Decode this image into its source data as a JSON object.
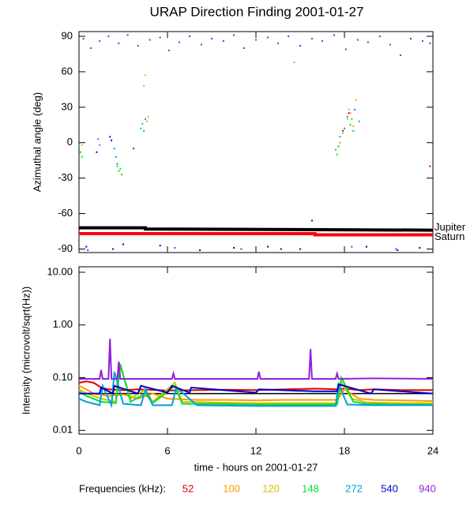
{
  "chart_data": [
    {
      "type": "scatter",
      "title": "URAP Direction Finding  2001-01-27",
      "ylabel": "Azimuthal angle (deg)",
      "xlim": [
        0,
        24
      ],
      "ylim": [
        -93,
        94
      ],
      "yticks": [
        -90,
        -60,
        -30,
        0,
        30,
        60,
        90
      ],
      "series": [
        {
          "name": "52",
          "color": "#e00000",
          "x": [
            3.7,
            17.9,
            18.3,
            23.8
          ],
          "values": [
            -5,
            10,
            25,
            -20
          ]
        },
        {
          "name": "100",
          "color": "#ff9900",
          "x": [
            4.6,
            4.7,
            14.6,
            17.7,
            17.9,
            18.2,
            18.4,
            18.6,
            0.1
          ],
          "values": [
            18,
            22,
            68,
            0,
            8,
            20,
            25,
            14,
            -8
          ]
        },
        {
          "name": "120",
          "color": "#d4c000",
          "x": [
            4.4,
            4.5,
            17.6,
            18.0,
            18.3,
            18.8,
            0.2
          ],
          "values": [
            48,
            57,
            -3,
            12,
            28,
            36,
            -2
          ]
        },
        {
          "name": "148",
          "color": "#00e030",
          "x": [
            0.0,
            0.1,
            0.2,
            2.6,
            2.7,
            2.8,
            2.9,
            4.2,
            4.3,
            17.4,
            17.5,
            17.6,
            18.4,
            18.5,
            18.6
          ],
          "values": [
            -3,
            -8,
            -12,
            -20,
            -24,
            -22,
            -27,
            12,
            16,
            -6,
            -10,
            -3,
            15,
            20,
            10
          ]
        },
        {
          "name": "272",
          "color": "#00a0e0",
          "x": [
            1.3,
            1.4,
            2.4,
            2.5,
            2.6,
            4.4,
            4.5,
            17.7,
            18.0,
            18.2,
            18.7,
            19.0
          ],
          "values": [
            3,
            -2,
            -5,
            -12,
            -18,
            10,
            20,
            5,
            12,
            22,
            28,
            18
          ]
        },
        {
          "name": "540",
          "color": "#0000d0",
          "x": [
            1.2,
            2.1,
            2.2,
            0.5,
            2.3,
            5.5,
            8.2,
            10.5,
            12.8,
            15.0,
            15.8,
            19.5,
            21.6,
            23.1,
            3.0,
            13.7
          ],
          "values": [
            -8,
            5,
            2,
            -88,
            -90,
            -87,
            -91,
            -89,
            -88,
            -90,
            -66,
            -88,
            -91,
            -89,
            -86,
            -90
          ]
        },
        {
          "name": "940",
          "color": "#9020e0",
          "x": [
            0.3,
            0.8,
            1.4,
            2.0,
            2.7,
            3.3,
            4.0,
            4.8,
            5.5,
            6.1,
            6.8,
            7.5,
            8.3,
            9.0,
            9.8,
            10.5,
            11.2,
            12.0,
            12.8,
            13.5,
            14.2,
            15.0,
            15.8,
            16.5,
            17.3,
            18.1,
            18.9,
            19.6,
            20.4,
            21.1,
            21.8,
            22.5,
            23.3,
            23.8,
            0.6,
            6.5,
            11.0,
            18.5,
            21.5
          ],
          "values": [
            88,
            80,
            86,
            90,
            84,
            91,
            82,
            87,
            89,
            78,
            85,
            90,
            83,
            88,
            86,
            91,
            80,
            87,
            89,
            84,
            90,
            82,
            88,
            86,
            91,
            79,
            87,
            85,
            90,
            83,
            74,
            88,
            86,
            84,
            -91,
            -89,
            -90,
            -88,
            -90
          ]
        }
      ],
      "reference_lines": [
        {
          "name": "Jupiter",
          "color": "#000000",
          "x": [
            0,
            4.5,
            4.5,
            24
          ],
          "values": [
            -72,
            -72,
            -73,
            -74
          ]
        },
        {
          "name": "Saturn",
          "color": "#ff0000",
          "x": [
            0,
            16,
            16,
            24
          ],
          "values": [
            -77,
            -77,
            -78,
            -78
          ]
        }
      ]
    },
    {
      "type": "line",
      "ylabel": "Intensity (microvolt/sqrt(Hz))",
      "xlabel": "time - hours on 2001-01-27",
      "xlim": [
        0,
        24
      ],
      "xticks": [
        0,
        6,
        12,
        18,
        24
      ],
      "log_scale": true,
      "ylim": [
        0.0085,
        12.7
      ],
      "yticks": [
        {
          "value": 0.01,
          "label": "0.01"
        },
        {
          "value": 0.1,
          "label": "0.10"
        },
        {
          "value": 1,
          "label": "1.00"
        },
        {
          "value": 10,
          "label": "10.00"
        }
      ],
      "legend_title": "Frequencies (kHz):",
      "series": [
        {
          "name": "52",
          "color": "#e00000",
          "x": [
            0,
            0.5,
            1,
            1.5,
            2,
            3,
            4,
            6,
            8,
            10,
            12,
            14,
            16,
            17.5,
            18,
            19,
            20,
            22,
            24
          ],
          "values": [
            0.08,
            0.085,
            0.08,
            0.065,
            0.06,
            0.058,
            0.06,
            0.057,
            0.058,
            0.059,
            0.058,
            0.06,
            0.062,
            0.06,
            0.062,
            0.058,
            0.06,
            0.058,
            0.058
          ]
        },
        {
          "name": "100",
          "color": "#ff9900",
          "x": [
            0,
            0.5,
            1,
            2,
            3,
            4,
            5,
            6,
            8,
            10,
            12,
            14,
            16,
            17.5,
            18,
            19,
            20,
            22,
            24
          ],
          "values": [
            0.07,
            0.06,
            0.05,
            0.045,
            0.048,
            0.04,
            0.05,
            0.04,
            0.038,
            0.038,
            0.037,
            0.038,
            0.038,
            0.038,
            0.06,
            0.04,
            0.038,
            0.037,
            0.036
          ]
        },
        {
          "name": "120",
          "color": "#d4c000",
          "x": [
            0,
            0.5,
            1.5,
            2.5,
            2.7,
            3.5,
            4.5,
            5,
            6.5,
            7,
            9,
            12,
            15,
            17.5,
            17.8,
            18.5,
            19.5,
            22,
            24
          ],
          "values": [
            0.06,
            0.05,
            0.04,
            0.035,
            0.2,
            0.04,
            0.06,
            0.035,
            0.08,
            0.035,
            0.034,
            0.033,
            0.033,
            0.033,
            0.08,
            0.04,
            0.034,
            0.033,
            0.033
          ]
        },
        {
          "name": "148",
          "color": "#00e030",
          "x": [
            0,
            0.5,
            1.5,
            2.5,
            2.8,
            3.5,
            4.5,
            5,
            6.5,
            7,
            9,
            12,
            15,
            17.5,
            17.8,
            18.6,
            19.5,
            22,
            24
          ],
          "values": [
            0.055,
            0.045,
            0.035,
            0.033,
            0.18,
            0.035,
            0.05,
            0.033,
            0.07,
            0.032,
            0.032,
            0.031,
            0.031,
            0.031,
            0.1,
            0.035,
            0.032,
            0.031,
            0.031
          ]
        },
        {
          "name": "272",
          "color": "#00a0e0",
          "x": [
            0,
            0.5,
            1.4,
            1.6,
            2.2,
            2.4,
            3,
            4.2,
            4.5,
            5,
            6.3,
            6.6,
            8,
            12,
            16,
            17.4,
            17.6,
            18.2,
            20,
            24
          ],
          "values": [
            0.04,
            0.035,
            0.03,
            0.07,
            0.03,
            0.13,
            0.032,
            0.03,
            0.06,
            0.03,
            0.03,
            0.065,
            0.03,
            0.029,
            0.029,
            0.029,
            0.075,
            0.031,
            0.03,
            0.03
          ]
        },
        {
          "name": "540",
          "color": "#0000d0",
          "x": [
            0,
            1.4,
            1.5,
            2.3,
            2.4,
            4,
            4.2,
            6,
            6.3,
            7.5,
            7.6,
            12,
            12.2,
            16,
            17.5,
            17.6,
            19.8,
            20,
            24
          ],
          "values": [
            0.05,
            0.05,
            0.065,
            0.05,
            0.07,
            0.05,
            0.07,
            0.052,
            0.07,
            0.052,
            0.065,
            0.052,
            0.06,
            0.055,
            0.055,
            0.075,
            0.05,
            0.06,
            0.05
          ]
        },
        {
          "name": "940",
          "color": "#9020e0",
          "x": [
            0,
            1.4,
            1.5,
            1.6,
            2.0,
            2.1,
            2.2,
            2.6,
            2.7,
            2.8,
            6.3,
            6.4,
            6.5,
            12.1,
            12.2,
            12.3,
            15.6,
            15.7,
            15.8,
            17.4,
            17.5,
            17.6,
            20,
            24
          ],
          "values": [
            0.095,
            0.095,
            0.14,
            0.095,
            0.095,
            0.55,
            0.095,
            0.095,
            0.2,
            0.095,
            0.095,
            0.12,
            0.095,
            0.095,
            0.13,
            0.095,
            0.095,
            0.35,
            0.095,
            0.095,
            0.12,
            0.095,
            0.097,
            0.095
          ]
        }
      ],
      "reference_lines": [
        {
          "color": "#000000",
          "x": [
            0,
            24
          ],
          "values": [
            0.05,
            0.05
          ]
        }
      ]
    }
  ]
}
